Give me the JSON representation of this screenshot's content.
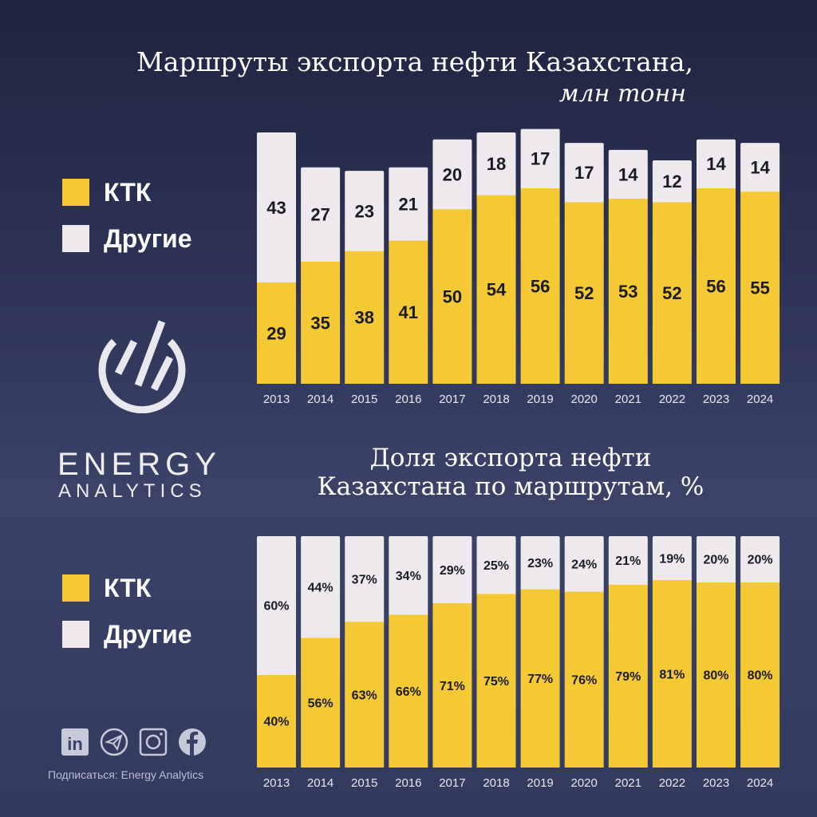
{
  "chart_data": [
    {
      "type": "bar",
      "stacked": true,
      "title": "Маршруты экспорта нефти Казахстана,",
      "subtitle": "млн тонн",
      "categories": [
        "2013",
        "2014",
        "2015",
        "2016",
        "2017",
        "2018",
        "2019",
        "2020",
        "2021",
        "2022",
        "2023",
        "2024"
      ],
      "series": [
        {
          "name": "КТК",
          "color": "#f5c934",
          "values": [
            29,
            35,
            38,
            41,
            50,
            54,
            56,
            52,
            53,
            52,
            56,
            55
          ]
        },
        {
          "name": "Другие",
          "color": "#ede9ec",
          "values": [
            43,
            27,
            23,
            21,
            20,
            18,
            17,
            17,
            14,
            12,
            14,
            14
          ]
        }
      ],
      "legend": "left"
    },
    {
      "type": "bar",
      "stacked": true,
      "title": "Доля экспорта нефти Казахстана по маршрутам, %",
      "categories": [
        "2013",
        "2014",
        "2015",
        "2016",
        "2017",
        "2018",
        "2019",
        "2020",
        "2021",
        "2022",
        "2023",
        "2024"
      ],
      "series": [
        {
          "name": "КТК",
          "color": "#f5c934",
          "values": [
            40,
            56,
            63,
            66,
            71,
            75,
            77,
            76,
            79,
            81,
            80,
            80
          ]
        },
        {
          "name": "Другие",
          "color": "#ede9ec",
          "values": [
            60,
            44,
            37,
            34,
            29,
            25,
            23,
            24,
            21,
            19,
            20,
            20
          ]
        }
      ],
      "value_suffix": "%",
      "legend": "left"
    }
  ],
  "brand": {
    "line1": "ENERGY",
    "line2": "ANALYTICS"
  },
  "footer": {
    "subscribe": "Подписаться: Energy Analytics",
    "icons": [
      "linkedin-icon",
      "telegram-icon",
      "instagram-icon",
      "facebook-icon"
    ]
  }
}
